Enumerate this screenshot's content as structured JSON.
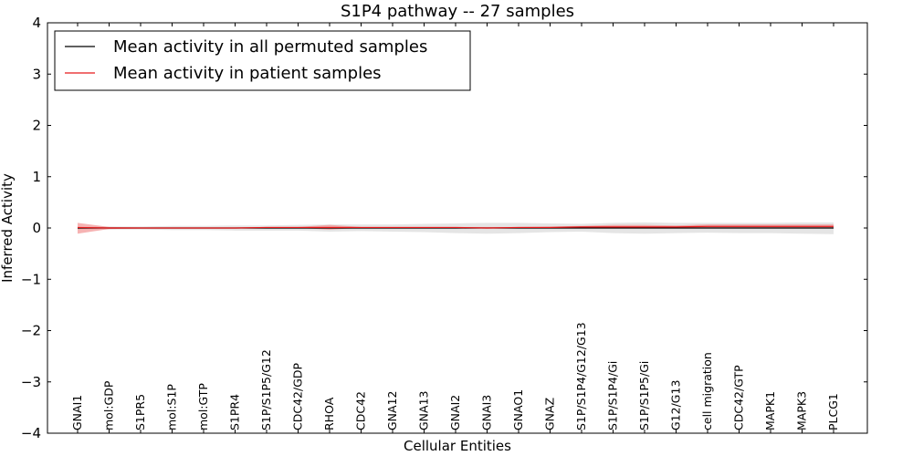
{
  "chart_data": {
    "type": "line",
    "title": "S1P4 pathway -- 27 samples",
    "xlabel": "Cellular Entities",
    "ylabel": "Inferred Activity",
    "ylim": [
      -4,
      4
    ],
    "yticks": [
      4,
      3,
      2,
      1,
      0,
      -1,
      -2,
      -3,
      -4
    ],
    "ytick_labels": [
      "4",
      "3",
      "2",
      "1",
      "0",
      "−1",
      "−2",
      "−3",
      "−4"
    ],
    "grid": false,
    "legend_position": "top-left",
    "categories": [
      "GNAI1",
      "mol:GDP",
      "S1PR5",
      "mol:S1P",
      "mol:GTP",
      "S1PR4",
      "S1P/S1P5/G12",
      "CDC42/GDP",
      "RHOA",
      "CDC42",
      "GNA12",
      "GNA13",
      "GNAI2",
      "GNAI3",
      "GNAO1",
      "GNAZ",
      "S1P/S1P4/G12/G13",
      "S1P/S1P4/Gi",
      "S1P/S1P5/Gi",
      "G12/G13",
      "cell migration",
      "CDC42/GTP",
      "MAPK1",
      "MAPK3",
      "PLCG1"
    ],
    "series": [
      {
        "name": "Mean activity in all permuted samples",
        "color": "#000000",
        "values": [
          0,
          0,
          0,
          0,
          0,
          0,
          0,
          0,
          0,
          0,
          0,
          0,
          0,
          0,
          0,
          0,
          0,
          0,
          0,
          0,
          0,
          0,
          0,
          0,
          0
        ],
        "band_lower": [
          -0.02,
          -0.03,
          -0.03,
          -0.04,
          -0.04,
          -0.05,
          -0.05,
          -0.05,
          -0.07,
          -0.06,
          -0.07,
          -0.08,
          -0.1,
          -0.11,
          -0.1,
          -0.08,
          -0.07,
          -0.1,
          -0.11,
          -0.1,
          -0.09,
          -0.1,
          -0.1,
          -0.11,
          -0.12
        ],
        "band_upper": [
          0.02,
          0.03,
          0.03,
          0.04,
          0.04,
          0.05,
          0.05,
          0.06,
          0.07,
          0.07,
          0.07,
          0.08,
          0.09,
          0.1,
          0.1,
          0.09,
          0.08,
          0.1,
          0.11,
          0.1,
          0.1,
          0.1,
          0.1,
          0.11,
          0.11
        ]
      },
      {
        "name": "Mean activity in patient samples",
        "color": "#e8191a",
        "band_color": "#f08080",
        "values": [
          0.01,
          0,
          0,
          0,
          0,
          0,
          0.01,
          0.01,
          0.01,
          0.01,
          0.01,
          0.01,
          0.01,
          0,
          0.01,
          0.01,
          0.02,
          0.02,
          0.02,
          0.02,
          0.03,
          0.03,
          0.03,
          0.03,
          0.03
        ],
        "band_lower": [
          -0.11,
          -0.02,
          -0.01,
          -0.01,
          -0.01,
          -0.01,
          0,
          0,
          -0.03,
          0,
          0,
          0,
          0,
          0,
          0,
          0,
          0,
          0,
          0,
          0,
          0,
          0,
          0,
          0,
          0
        ],
        "band_upper": [
          0.1,
          0.02,
          0.01,
          0.01,
          0.01,
          0.01,
          0.02,
          0.02,
          0.06,
          0.02,
          0.02,
          0.02,
          0.02,
          0.02,
          0.02,
          0.03,
          0.04,
          0.06,
          0.06,
          0.05,
          0.07,
          0.07,
          0.07,
          0.07,
          0.07
        ]
      }
    ]
  }
}
